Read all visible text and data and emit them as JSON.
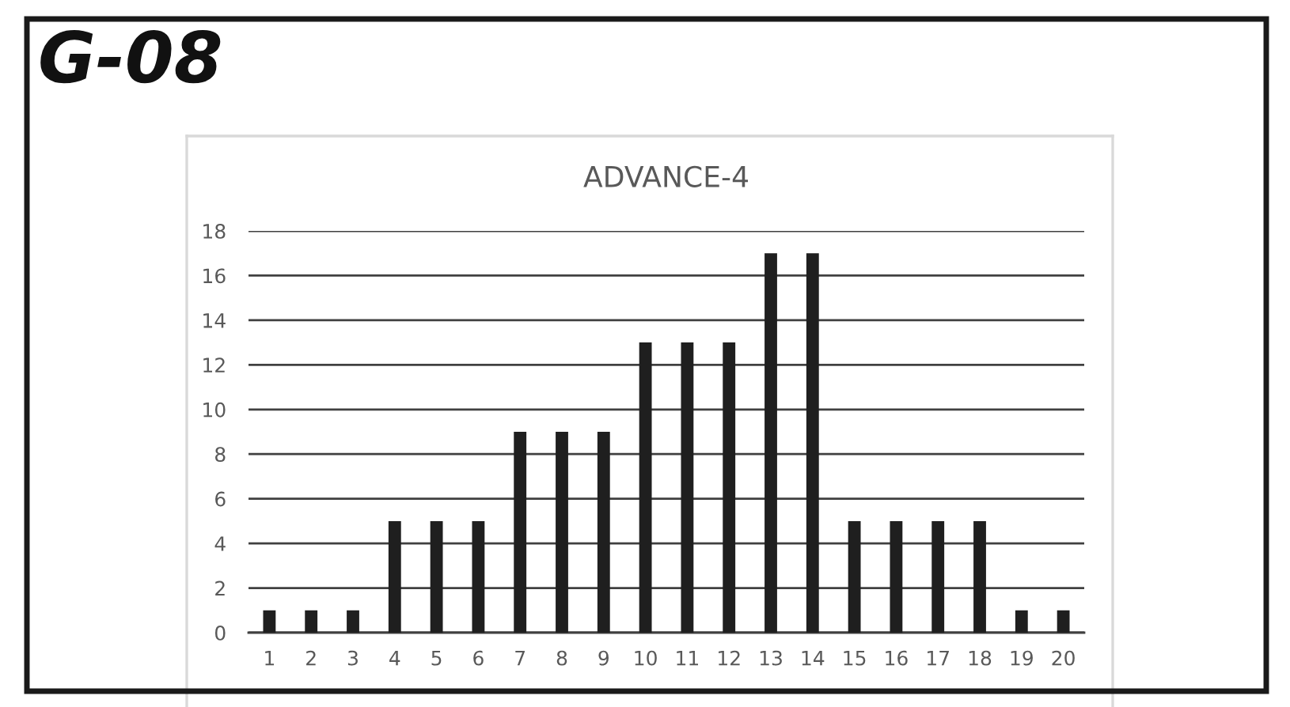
{
  "chart_data": {
    "type": "bar",
    "title": "G-08",
    "subtitle": "ADVANCE-4",
    "categories": [
      "1",
      "2",
      "3",
      "4",
      "5",
      "6",
      "7",
      "8",
      "9",
      "10",
      "11",
      "12",
      "13",
      "14",
      "15",
      "16",
      "17",
      "18",
      "19",
      "20"
    ],
    "values": [
      1,
      1,
      1,
      5,
      5,
      5,
      9,
      9,
      9,
      13,
      13,
      13,
      17,
      17,
      5,
      5,
      5,
      5,
      1,
      1
    ],
    "color": "#1f1f1f",
    "ylim": [
      0,
      18
    ],
    "yticks": [
      0,
      2,
      4,
      6,
      8,
      10,
      12,
      14,
      16,
      18
    ],
    "grid": "y"
  }
}
